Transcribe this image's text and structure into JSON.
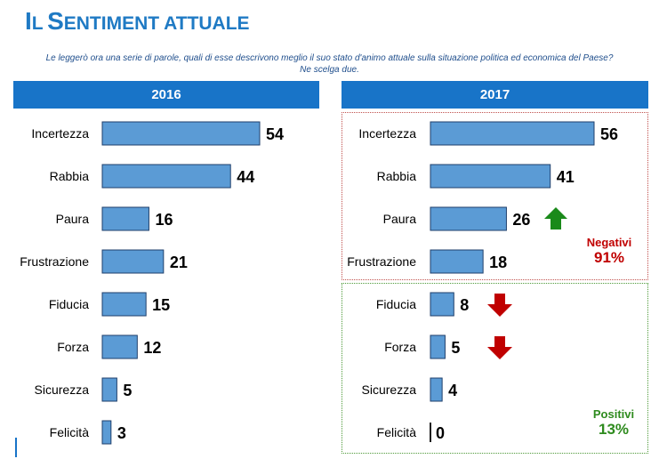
{
  "title": {
    "first": "I",
    "rest_first": "L",
    "second": "S",
    "rest_second": "ENTIMENT ATTUALE"
  },
  "subtitle": {
    "line1": "Le leggerò ora una serie di parole, quali di esse descrivono meglio il suo stato d'animo attuale sulla situazione politica ed economica del Paese?",
    "line2": "Ne scelga due."
  },
  "colors": {
    "bar": "#5b9bd5",
    "bar_border": "#1f3f6b",
    "header": "#1874c8",
    "neg": "#c00000",
    "pos": "#2e8b1e",
    "arrow_up": "#1a8a1a",
    "arrow_down": "#c00000"
  },
  "groups": {
    "negativi": {
      "label": "Negativi",
      "value": "91%"
    },
    "positivi": {
      "label": "Positivi",
      "value": "13%"
    }
  },
  "chart_data": [
    {
      "type": "bar",
      "orientation": "horizontal",
      "title": "2016",
      "categories": [
        "Incertezza",
        "Rabbia",
        "Paura",
        "Frustrazione",
        "Fiducia",
        "Forza",
        "Sicurezza",
        "Felicità"
      ],
      "values": [
        54,
        44,
        16,
        21,
        15,
        12,
        5,
        3
      ],
      "xlim": [
        0,
        60
      ]
    },
    {
      "type": "bar",
      "orientation": "horizontal",
      "title": "2017",
      "categories": [
        "Incertezza",
        "Rabbia",
        "Paura",
        "Frustrazione",
        "Fiducia",
        "Forza",
        "Sicurezza",
        "Felicità"
      ],
      "values": [
        56,
        41,
        26,
        18,
        8,
        5,
        4,
        0
      ],
      "trend_arrows": [
        "",
        "",
        "up",
        "",
        "down",
        "down",
        "",
        ""
      ],
      "xlim": [
        0,
        60
      ]
    }
  ]
}
